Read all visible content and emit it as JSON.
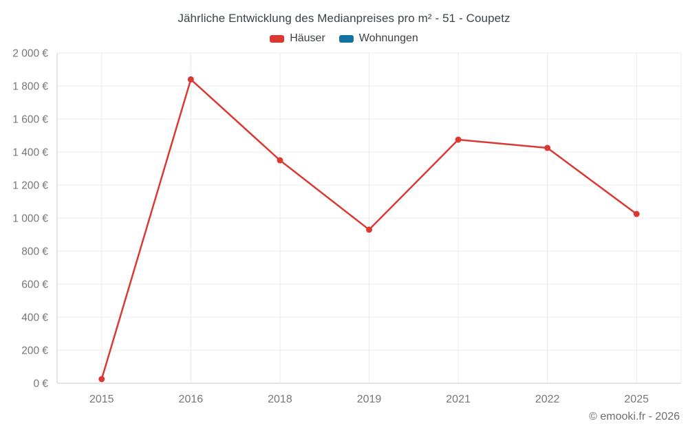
{
  "page": {
    "footer": "© emooki.fr - 2026"
  },
  "chart_data": {
    "type": "line",
    "title": "Jährliche Entwicklung des Medianpreises pro m² - 51 - Coupetz",
    "categories": [
      "2015",
      "2016",
      "2018",
      "2019",
      "2021",
      "2022",
      "2025"
    ],
    "series": [
      {
        "name": "Häuser",
        "color": "#db3832",
        "values": [
          25,
          1840,
          1350,
          930,
          1475,
          1425,
          1025
        ]
      },
      {
        "name": "Wohnungen",
        "color": "#1273a5",
        "values": [
          null,
          null,
          null,
          null,
          null,
          null,
          null
        ]
      }
    ],
    "ylim": [
      0,
      2000
    ],
    "yticks": [
      0,
      200,
      400,
      600,
      800,
      1000,
      1200,
      1400,
      1600,
      1800,
      2000
    ],
    "ytick_labels": [
      "0 €",
      "200 €",
      "400 €",
      "600 €",
      "800 €",
      "1 000 €",
      "1 200 €",
      "1 400 €",
      "1 600 €",
      "1 800 €",
      "2 000 €"
    ],
    "yunit": "€",
    "grid": true,
    "legend_position": "top",
    "point_style": "circle"
  },
  "colors": {
    "haeuser": "#db3832",
    "wohnungen": "#1273a5",
    "grid": "#ebebeb",
    "axis": "#c9ccce",
    "tick_text": "#73777b",
    "title_text": "#3c4348",
    "footer_text": "#6b6f73",
    "background": "#ffffff"
  }
}
